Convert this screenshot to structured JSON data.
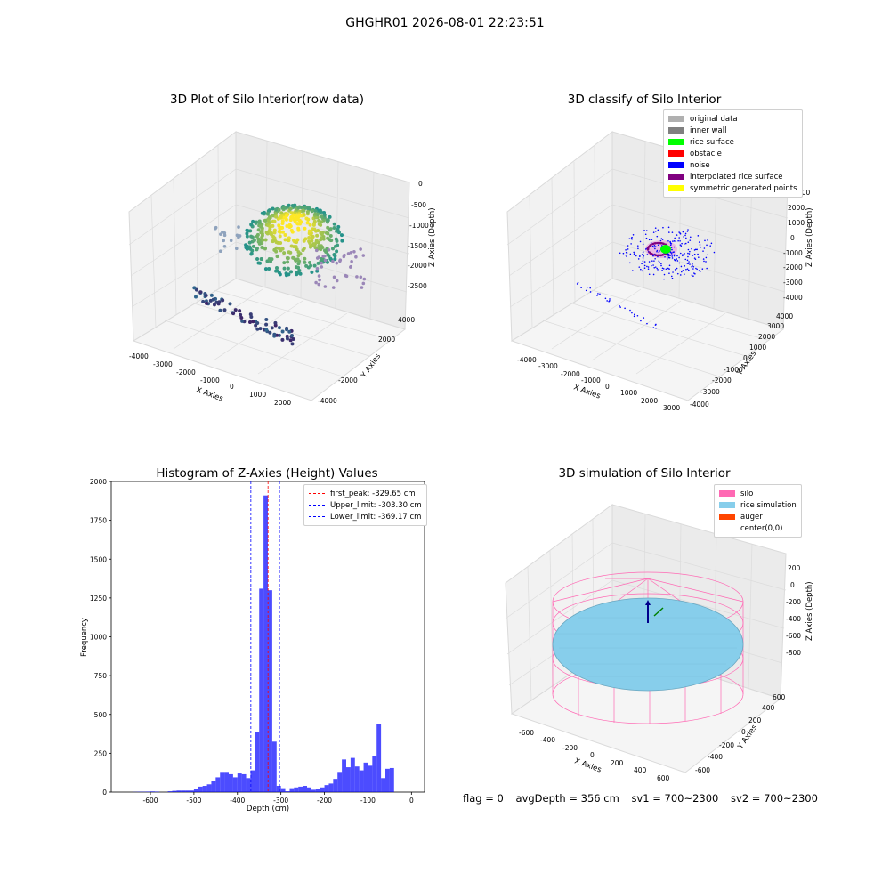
{
  "suptitle": "GHGHR01 2026-08-01 22:23:51",
  "panels": {
    "raw": {
      "title": "3D Plot of Silo Interior(row data)",
      "xlabel": "X Axies",
      "ylabel": "Y Axies",
      "zlabel": "Z Axies (Depth)",
      "xticks": [
        "-4000",
        "-3000",
        "-2000",
        "-1000",
        "0",
        "1000",
        "2000"
      ],
      "yticks": [
        "4000",
        "2000",
        "-2000",
        "-4000"
      ],
      "zticks": [
        "0",
        "-500",
        "-1000",
        "-1500",
        "-2000",
        "-2500"
      ]
    },
    "classify": {
      "title": "3D classify of Silo Interior",
      "xlabel": "X Axies",
      "ylabel": "Y Axies",
      "zlabel": "Z Axies (Depth)",
      "xticks": [
        "-4000",
        "-3000",
        "-2000",
        "-1000",
        "0",
        "1000",
        "2000",
        "3000"
      ],
      "yticks": [
        "4000",
        "3000",
        "2000",
        "1000",
        "0",
        "-1000",
        "-2000",
        "-3000",
        "-4000"
      ],
      "zticks": [
        "2000",
        "1000",
        "0",
        "-1000",
        "-2000",
        "-3000",
        "-4000",
        "-5000"
      ],
      "zticks_partial": "000",
      "legend": [
        {
          "label": "original data",
          "color": "#b0b0b0"
        },
        {
          "label": "inner wall",
          "color": "#808080"
        },
        {
          "label": "rice surface",
          "color": "#00ff00"
        },
        {
          "label": "obstacle",
          "color": "#ff0000"
        },
        {
          "label": "noise",
          "color": "#0000ff"
        },
        {
          "label": "interpolated rice surface",
          "color": "#800080"
        },
        {
          "label": "symmetric generated points",
          "color": "#ffff00"
        }
      ]
    },
    "simulation": {
      "title": "3D simulation of Silo Interior",
      "xlabel": "X Axies",
      "ylabel": "Y Axies",
      "zlabel": "Z Axies (Depth)",
      "xticks": [
        "-600",
        "-400",
        "-200",
        "0",
        "200",
        "400",
        "600"
      ],
      "yticks": [
        "600",
        "400",
        "200",
        "0",
        "-200",
        "-400",
        "-600"
      ],
      "zticks": [
        "200",
        "0",
        "-200",
        "-400",
        "-600",
        "-800"
      ],
      "legend": [
        {
          "label": "silo",
          "color": "#ff69b4"
        },
        {
          "label": "rice simulation",
          "color": "#87ceeb"
        },
        {
          "label": "auger",
          "color": "#ff4500"
        },
        {
          "label": "center(0,0)",
          "color": "#ffffff"
        }
      ],
      "footer": {
        "flag": "flag = 0",
        "avg": "avgDepth = 356 cm",
        "sv1": "sv1 = 700~2300",
        "sv2": "sv2 = 700~2300"
      }
    }
  },
  "chart_data": [
    {
      "type": "scatter",
      "title": "3D Plot of Silo Interior(row data)",
      "xlabel": "X Axies",
      "ylabel": "Y Axies",
      "zlabel": "Z Axies (Depth)",
      "zlim": [
        -2800,
        200
      ]
    },
    {
      "type": "scatter",
      "title": "3D classify of Silo Interior",
      "xlabel": "X Axies",
      "ylabel": "Y Axies",
      "zlabel": "Z Axies (Depth)",
      "series": [
        {
          "name": "original data"
        },
        {
          "name": "inner wall"
        },
        {
          "name": "rice surface"
        },
        {
          "name": "obstacle"
        },
        {
          "name": "noise"
        },
        {
          "name": "interpolated rice surface"
        },
        {
          "name": "symmetric generated points"
        }
      ]
    },
    {
      "type": "bar",
      "title": "Histogram of Z-Axies (Height) Values",
      "xlabel": "Depth (cm)",
      "ylabel": "Frequency",
      "xlim": [
        -690,
        30
      ],
      "ylim": [
        0,
        2000
      ],
      "xticks": [
        "-600",
        "-500",
        "-400",
        "-300",
        "-200",
        "-100",
        "0"
      ],
      "yticks": [
        "0",
        "250",
        "500",
        "750",
        "1000",
        "1250",
        "1500",
        "1750",
        "2000"
      ],
      "color": "#0000ff",
      "bins": [
        [
          -640,
          -630,
          1
        ],
        [
          -630,
          -620,
          2
        ],
        [
          -620,
          -610,
          2
        ],
        [
          -610,
          -600,
          3
        ],
        [
          -600,
          -590,
          4
        ],
        [
          -590,
          -580,
          3
        ],
        [
          -560,
          -550,
          5
        ],
        [
          -550,
          -540,
          8
        ],
        [
          -540,
          -530,
          10
        ],
        [
          -530,
          -520,
          10
        ],
        [
          -520,
          -510,
          10
        ],
        [
          -510,
          -500,
          10
        ],
        [
          -500,
          -490,
          20
        ],
        [
          -490,
          -480,
          35
        ],
        [
          -480,
          -470,
          40
        ],
        [
          -470,
          -460,
          50
        ],
        [
          -460,
          -450,
          70
        ],
        [
          -450,
          -440,
          95
        ],
        [
          -440,
          -430,
          130
        ],
        [
          -430,
          -420,
          130
        ],
        [
          -420,
          -410,
          115
        ],
        [
          -410,
          -400,
          95
        ],
        [
          -400,
          -390,
          120
        ],
        [
          -390,
          -380,
          115
        ],
        [
          -380,
          -370,
          90
        ],
        [
          -370,
          -360,
          140
        ],
        [
          -360,
          -350,
          385
        ],
        [
          -350,
          -340,
          1310
        ],
        [
          -340,
          -330,
          1910
        ],
        [
          -330,
          -320,
          1300
        ],
        [
          -320,
          -310,
          325
        ],
        [
          -310,
          -300,
          40
        ],
        [
          -300,
          -290,
          25
        ],
        [
          -290,
          -280,
          5
        ],
        [
          -280,
          -270,
          25
        ],
        [
          -270,
          -260,
          30
        ],
        [
          -260,
          -250,
          35
        ],
        [
          -250,
          -240,
          40
        ],
        [
          -240,
          -230,
          30
        ],
        [
          -230,
          -220,
          15
        ],
        [
          -220,
          -210,
          20
        ],
        [
          -210,
          -200,
          30
        ],
        [
          -200,
          -190,
          45
        ],
        [
          -190,
          -180,
          55
        ],
        [
          -180,
          -170,
          85
        ],
        [
          -170,
          -160,
          130
        ],
        [
          -160,
          -150,
          210
        ],
        [
          -150,
          -140,
          160
        ],
        [
          -140,
          -130,
          220
        ],
        [
          -130,
          -120,
          165
        ],
        [
          -120,
          -110,
          140
        ],
        [
          -110,
          -100,
          190
        ],
        [
          -100,
          -90,
          170
        ],
        [
          -90,
          -80,
          230
        ],
        [
          -80,
          -70,
          440
        ],
        [
          -70,
          -60,
          90
        ],
        [
          -60,
          -50,
          150
        ],
        [
          -50,
          -40,
          155
        ]
      ],
      "lines": [
        {
          "name": "first_peak: -329.65 cm",
          "x": -329.65,
          "color": "#ff0000"
        },
        {
          "name": "Upper_limit: -303.30 cm",
          "x": -303.3,
          "color": "#0000ff"
        },
        {
          "name": "Lower_limit: -369.17 cm",
          "x": -369.17,
          "color": "#0000ff"
        }
      ]
    },
    {
      "type": "scatter",
      "title": "3D simulation of Silo Interior",
      "xlabel": "X Axies",
      "ylabel": "Y Axies",
      "zlabel": "Z Axies (Depth)",
      "series": [
        {
          "name": "silo"
        },
        {
          "name": "rice simulation"
        },
        {
          "name": "auger"
        },
        {
          "name": "center(0,0)"
        }
      ]
    }
  ]
}
